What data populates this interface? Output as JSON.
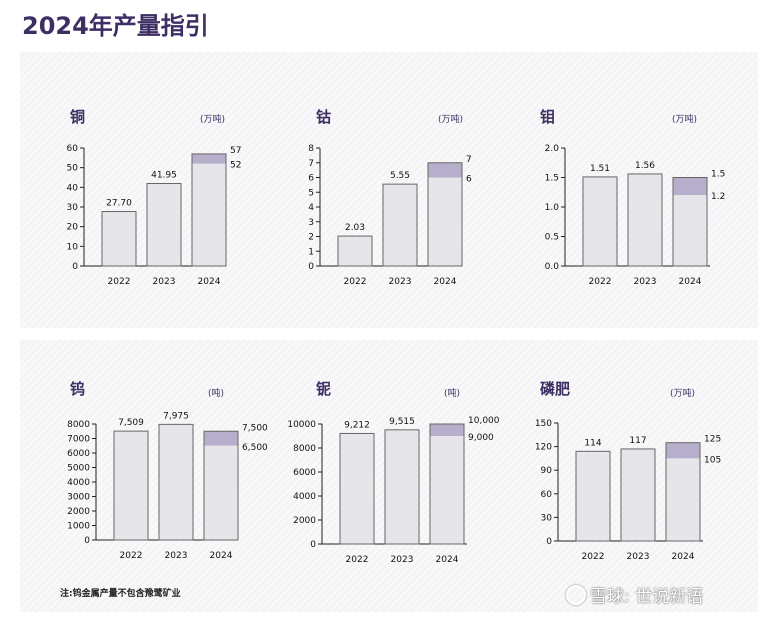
{
  "page": {
    "title": "2024年产量指引",
    "footnote": "注:钨金属产量不包含豫鹭矿业",
    "watermark": "雪球: 世说新语"
  },
  "colors": {
    "bar_fill": "#e6e6ea",
    "bar_stroke": "#666666",
    "range_fill": "#b7aecb",
    "title": "#3d2e63"
  },
  "chart_data": [
    {
      "id": "copper",
      "type": "bar",
      "title": "铜",
      "unit": "(万吨)",
      "categories": [
        "2022",
        "2023",
        "2024"
      ],
      "values": [
        27.7,
        41.95,
        52
      ],
      "range_high": [
        null,
        null,
        57
      ],
      "value_labels": [
        "27.70",
        "41.95",
        ""
      ],
      "range_labels": {
        "high": "57",
        "low": "52"
      },
      "ylim": [
        0,
        60
      ],
      "yticks": [
        0,
        10,
        20,
        30,
        40,
        50,
        60
      ],
      "ytick_labels": [
        "0",
        "10",
        "20",
        "30",
        "40",
        "50",
        "60"
      ],
      "grid": false,
      "legend": "none"
    },
    {
      "id": "cobalt",
      "type": "bar",
      "title": "钴",
      "unit": "(万吨)",
      "categories": [
        "2022",
        "2023",
        "2024"
      ],
      "values": [
        2.03,
        5.55,
        6
      ],
      "range_high": [
        null,
        null,
        7
      ],
      "value_labels": [
        "2.03",
        "5.55",
        ""
      ],
      "range_labels": {
        "high": "7",
        "low": "6"
      },
      "ylim": [
        0,
        8
      ],
      "yticks": [
        0,
        1,
        2,
        3,
        4,
        5,
        6,
        7,
        8
      ],
      "ytick_labels": [
        "0",
        "1",
        "2",
        "3",
        "4",
        "5",
        "6",
        "7",
        "8"
      ],
      "grid": false,
      "legend": "none"
    },
    {
      "id": "molybdenum",
      "type": "bar",
      "title": "钼",
      "unit": "(万吨)",
      "categories": [
        "2022",
        "2023",
        "2024"
      ],
      "values": [
        1.51,
        1.56,
        1.2
      ],
      "range_high": [
        null,
        null,
        1.5
      ],
      "value_labels": [
        "1.51",
        "1.56",
        ""
      ],
      "range_labels": {
        "high": "1.5",
        "low": "1.2"
      },
      "ylim": [
        0,
        2.0
      ],
      "yticks": [
        0,
        0.5,
        1.0,
        1.5,
        2.0
      ],
      "ytick_labels": [
        "0.0",
        "0.5",
        "1.0",
        "1.5",
        "2.0"
      ],
      "grid": false,
      "legend": "none"
    },
    {
      "id": "tungsten",
      "type": "bar",
      "title": "钨",
      "unit": "(吨)",
      "categories": [
        "2022",
        "2023",
        "2024"
      ],
      "values": [
        7509,
        7975,
        6500
      ],
      "range_high": [
        null,
        null,
        7500
      ],
      "value_labels": [
        "7,509",
        "7,975",
        ""
      ],
      "range_labels": {
        "high": "7,500",
        "low": "6,500"
      },
      "ylim": [
        0,
        8000
      ],
      "yticks": [
        0,
        1000,
        2000,
        3000,
        4000,
        5000,
        6000,
        7000,
        8000
      ],
      "ytick_labels": [
        "0",
        "1000",
        "2000",
        "3000",
        "4000",
        "5000",
        "6000",
        "7000",
        "8000"
      ],
      "grid": false,
      "legend": "none"
    },
    {
      "id": "niobium",
      "type": "bar",
      "title": "铌",
      "unit": "(吨)",
      "categories": [
        "2022",
        "2023",
        "2024"
      ],
      "values": [
        9212,
        9515,
        9000
      ],
      "range_high": [
        null,
        null,
        10000
      ],
      "value_labels": [
        "9,212",
        "9,515",
        ""
      ],
      "range_labels": {
        "high": "10,000",
        "low": "9,000"
      },
      "ylim": [
        0,
        10000
      ],
      "yticks": [
        0,
        2000,
        4000,
        6000,
        8000,
        10000
      ],
      "ytick_labels": [
        "0",
        "2000",
        "4000",
        "6000",
        "8000",
        "10000"
      ],
      "grid": false,
      "legend": "none"
    },
    {
      "id": "phosphate",
      "type": "bar",
      "title": "磷肥",
      "unit": "(万吨)",
      "categories": [
        "2022",
        "2023",
        "2024"
      ],
      "values": [
        114,
        117,
        105
      ],
      "range_high": [
        null,
        null,
        125
      ],
      "value_labels": [
        "114",
        "117",
        ""
      ],
      "range_labels": {
        "high": "125",
        "low": "105"
      },
      "ylim": [
        0,
        150
      ],
      "yticks": [
        0,
        30,
        60,
        90,
        120,
        150
      ],
      "ytick_labels": [
        "0",
        "30",
        "60",
        "90",
        "120",
        "150"
      ],
      "grid": false,
      "legend": "none"
    }
  ]
}
